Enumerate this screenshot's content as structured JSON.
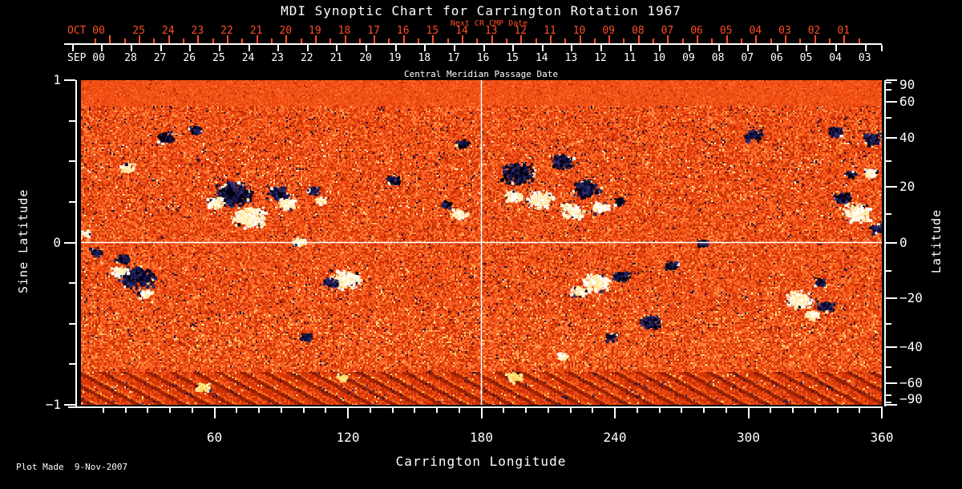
{
  "title": "MDI Synoptic Chart for Carrington Rotation 1967",
  "footer": "Plot Made  9-Nov-2007",
  "colors": {
    "background": "#000000",
    "axis_white": "#ffffff",
    "next_cr_red": "#ff4d26",
    "crosshair": "#ffffff"
  },
  "chart_data": {
    "type": "heatmap",
    "title": "MDI Synoptic Chart for Carrington Rotation 1967",
    "description": "Full-rotation solar magnetogram synoptic map; orange noise background with dark (negative polarity) and white/yellow (positive polarity) active regions.",
    "top_axis_next": {
      "title": "Next CR CMP Date",
      "month_label": "OCT 00",
      "day_labels": [
        "25",
        "24",
        "23",
        "22",
        "21",
        "20",
        "19",
        "18",
        "17",
        "16",
        "15",
        "14",
        "13",
        "12",
        "11",
        "10",
        "09",
        "08",
        "07",
        "06",
        "05",
        "04",
        "03",
        "02",
        "01"
      ]
    },
    "top_axis_cmp": {
      "title": "Central Meridian Passage Date",
      "month_label": "SEP 00",
      "day_labels": [
        "28",
        "27",
        "26",
        "25",
        "24",
        "23",
        "22",
        "21",
        "20",
        "19",
        "18",
        "17",
        "16",
        "15",
        "14",
        "13",
        "12",
        "11",
        "10",
        "09",
        "08",
        "07",
        "06",
        "05",
        "04",
        "03"
      ]
    },
    "x_axis": {
      "label": "Carrington Longitude",
      "range": [
        0,
        360
      ],
      "major_ticks": [
        60,
        120,
        180,
        240,
        300,
        360
      ],
      "major_tick_labels": [
        "60",
        "120",
        "180",
        "240",
        "300",
        "360"
      ],
      "minor_tick_step": 10
    },
    "y_axis_left": {
      "label": "Sine Latitude",
      "range": [
        -1,
        1
      ],
      "labeled_ticks": [
        1,
        0,
        -1
      ],
      "labels": [
        "1",
        "0",
        "−1"
      ],
      "minor_tick_step": 0.25
    },
    "y_axis_right": {
      "label": "Latitude",
      "labeled_ticks": [
        90,
        60,
        40,
        20,
        0,
        -20,
        -40,
        -60,
        -90
      ],
      "labels": [
        "90",
        "60",
        "40",
        "20",
        "0",
        "−20",
        "−40",
        "−60",
        "−90"
      ],
      "minor_tick_step_deg": 10,
      "scaling": "sine"
    },
    "grid_crosshair": {
      "longitude": 180,
      "latitude": 0
    },
    "colormap": {
      "base": [
        "#c93005",
        "#e84410",
        "#f5571c",
        "#ff6a26",
        "#ff7e36",
        "#b02604",
        "#d8390b",
        "#ff9a4a",
        "#ffc06a"
      ],
      "negative_polarity": [
        "#000016",
        "#0b0b34",
        "#16164e",
        "#000000",
        "#22225e",
        "#2e2e72"
      ],
      "positive_polarity": [
        "#ffffff",
        "#fffdf2",
        "#ffedb2",
        "#ffe9a0"
      ],
      "south_highlight": [
        "#ffe27a",
        "#ffd257",
        "#fff0b0",
        "#ffdf66"
      ]
    },
    "active_regions": [
      {
        "lon": 24.9,
        "lat": -12.1,
        "r": 16,
        "t": "dark"
      },
      {
        "lon": 16.9,
        "lat": -10.1,
        "r": 7,
        "t": "bright"
      },
      {
        "lon": 28.5,
        "lat": -18.0,
        "r": 6,
        "t": "bright"
      },
      {
        "lon": 18.4,
        "lat": -5.5,
        "r": 7,
        "t": "dark"
      },
      {
        "lon": 20.5,
        "lat": 27.8,
        "r": 7,
        "t": "bright"
      },
      {
        "lon": 37.5,
        "lat": 40.8,
        "r": 8,
        "t": "dark"
      },
      {
        "lon": 51.2,
        "lat": 43.9,
        "r": 6,
        "t": "dark"
      },
      {
        "lon": 68.1,
        "lat": 17.7,
        "r": 17,
        "t": "dark"
      },
      {
        "lon": 75.0,
        "lat": 9.2,
        "r": 15,
        "t": "bright"
      },
      {
        "lon": 60.2,
        "lat": 14.4,
        "r": 8,
        "t": "bright"
      },
      {
        "lon": 87.9,
        "lat": 18.0,
        "r": 10,
        "t": "dark"
      },
      {
        "lon": 92.3,
        "lat": 14.1,
        "r": 8,
        "t": "bright"
      },
      {
        "lon": 104.1,
        "lat": 18.9,
        "r": 6,
        "t": "dark"
      },
      {
        "lon": 107.4,
        "lat": 15.3,
        "r": 5,
        "t": "bright"
      },
      {
        "lon": 118.6,
        "lat": -12.7,
        "r": 13,
        "t": "bright"
      },
      {
        "lon": 112.1,
        "lat": -14.1,
        "r": 7,
        "t": "dark"
      },
      {
        "lon": 97.7,
        "lat": 0.7,
        "r": 6,
        "t": "bright"
      },
      {
        "lon": 140.2,
        "lat": 22.8,
        "r": 6,
        "t": "dark"
      },
      {
        "lon": 169.7,
        "lat": 10.4,
        "r": 7,
        "t": "bright"
      },
      {
        "lon": 164.0,
        "lat": 13.9,
        "r": 5,
        "t": "dark"
      },
      {
        "lon": 170.8,
        "lat": 38.0,
        "r": 6,
        "t": "dark"
      },
      {
        "lon": 196.0,
        "lat": 25.6,
        "r": 15,
        "t": "dark"
      },
      {
        "lon": 215.9,
        "lat": 30.4,
        "r": 10,
        "t": "dark"
      },
      {
        "lon": 205.8,
        "lat": 15.6,
        "r": 12,
        "t": "bright"
      },
      {
        "lon": 227.0,
        "lat": 19.8,
        "r": 12,
        "t": "dark"
      },
      {
        "lon": 220.5,
        "lat": 11.5,
        "r": 10,
        "t": "bright"
      },
      {
        "lon": 233.2,
        "lat": 12.7,
        "r": 8,
        "t": "bright"
      },
      {
        "lon": 241.8,
        "lat": 15.0,
        "r": 6,
        "t": "dark"
      },
      {
        "lon": 194.2,
        "lat": 16.8,
        "r": 8,
        "t": "bright"
      },
      {
        "lon": 231.0,
        "lat": -14.1,
        "r": 12,
        "t": "bright"
      },
      {
        "lon": 242.2,
        "lat": -11.8,
        "r": 8,
        "t": "dark"
      },
      {
        "lon": 223.1,
        "lat": -17.1,
        "r": 7,
        "t": "bright"
      },
      {
        "lon": 255.5,
        "lat": -28.8,
        "r": 10,
        "t": "dark"
      },
      {
        "lon": 264.9,
        "lat": -7.8,
        "r": 6,
        "t": "dark"
      },
      {
        "lon": 278.9,
        "lat": 0.1,
        "r": 5,
        "t": "dark"
      },
      {
        "lon": 301.6,
        "lat": 41.6,
        "r": 8,
        "t": "dark"
      },
      {
        "lon": 338.4,
        "lat": 43.5,
        "r": 7,
        "t": "dark"
      },
      {
        "lon": 355.7,
        "lat": 40.1,
        "r": 9,
        "t": "dark"
      },
      {
        "lon": 322.2,
        "lat": -20.1,
        "r": 12,
        "t": "bright"
      },
      {
        "lon": 334.1,
        "lat": -22.8,
        "r": 8,
        "t": "dark"
      },
      {
        "lon": 328.3,
        "lat": -26.2,
        "r": 7,
        "t": "bright"
      },
      {
        "lon": 331.9,
        "lat": -14.1,
        "r": 6,
        "t": "dark"
      },
      {
        "lon": 348.5,
        "lat": 10.7,
        "r": 13,
        "t": "bright"
      },
      {
        "lon": 342.0,
        "lat": 15.9,
        "r": 8,
        "t": "dark"
      },
      {
        "lon": 357.5,
        "lat": 5.2,
        "r": 7,
        "t": "dark"
      },
      {
        "lon": 354.6,
        "lat": 25.6,
        "r": 6,
        "t": "bright"
      },
      {
        "lon": 345.6,
        "lat": 25.0,
        "r": 5,
        "t": "dark"
      },
      {
        "lon": 194.2,
        "lat": -55.8,
        "r": 7,
        "t": "bright-yellow"
      },
      {
        "lon": 215.9,
        "lat": -43.9,
        "r": 5,
        "t": "bright"
      },
      {
        "lon": 238.2,
        "lat": -35.5,
        "r": 6,
        "t": "dark"
      },
      {
        "lon": 100.5,
        "lat": -35.5,
        "r": 6,
        "t": "dark"
      },
      {
        "lon": 54.4,
        "lat": -62.4,
        "r": 6,
        "t": "bright-yellow"
      },
      {
        "lon": 116.8,
        "lat": -55.8,
        "r": 5,
        "t": "bright-yellow"
      },
      {
        "lon": 1.4,
        "lat": 3.5,
        "r": 5,
        "t": "bright"
      },
      {
        "lon": 6.1,
        "lat": -3.0,
        "r": 6,
        "t": "dark"
      }
    ]
  }
}
